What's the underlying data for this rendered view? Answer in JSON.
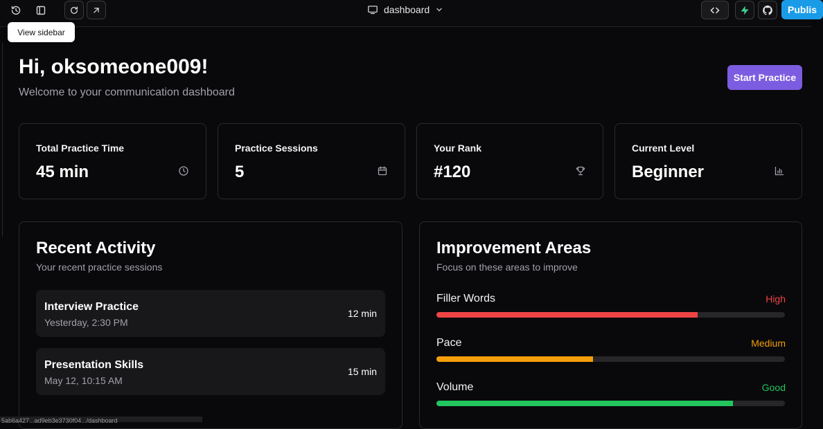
{
  "toolbar": {
    "title": "dashboard",
    "publish_label": "Publis",
    "tooltip": "View sidebar"
  },
  "header": {
    "greeting": "Hi, oksomeone009!",
    "subtitle": "Welcome to your communication dashboard",
    "start_label": "Start Practice"
  },
  "stats": [
    {
      "label": "Total Practice Time",
      "value": "45 min",
      "icon": "clock-icon"
    },
    {
      "label": "Practice Sessions",
      "value": "5",
      "icon": "calendar-icon"
    },
    {
      "label": "Your Rank",
      "value": "#120",
      "icon": "trophy-icon"
    },
    {
      "label": "Current Level",
      "value": "Beginner",
      "icon": "bar-chart-icon"
    }
  ],
  "recent": {
    "title": "Recent Activity",
    "subtitle": "Your recent practice sessions",
    "items": [
      {
        "name": "Interview Practice",
        "time": "Yesterday, 2:30 PM",
        "duration": "12 min"
      },
      {
        "name": "Presentation Skills",
        "time": "May 12, 10:15 AM",
        "duration": "15 min"
      }
    ]
  },
  "improvement": {
    "title": "Improvement Areas",
    "subtitle": "Focus on these areas to improve",
    "areas": [
      {
        "label": "Filler Words",
        "status": "High",
        "level": 0.75,
        "color": "#ef4444"
      },
      {
        "label": "Pace",
        "status": "Medium",
        "level": 0.45,
        "color": "#f59e0b"
      },
      {
        "label": "Volume",
        "status": "Good",
        "level": 0.85,
        "color": "#22c55e"
      }
    ]
  },
  "statusbar": {
    "text": "5ab6a427...ad9eb3e3730f04.../dashboard"
  },
  "colors": {
    "accent": "#7c5ce0",
    "publish": "#1a9be8",
    "supabase": "#3ecf8e"
  }
}
